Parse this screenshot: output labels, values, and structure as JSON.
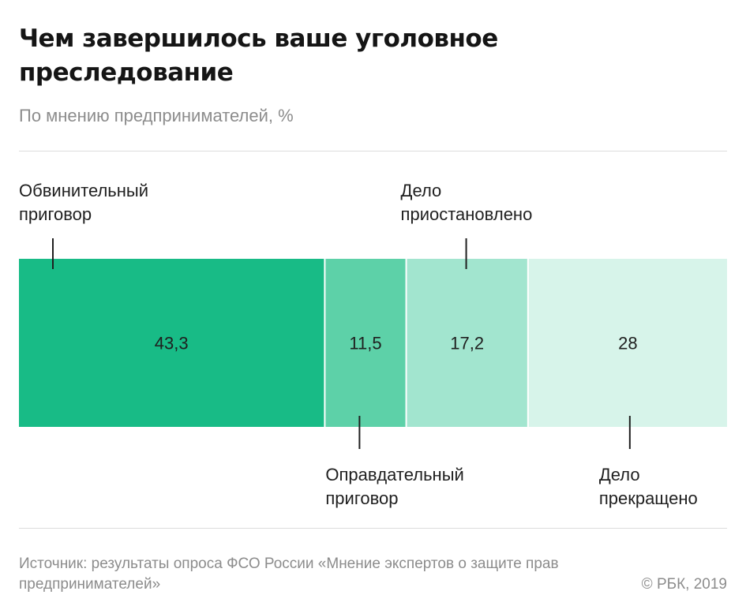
{
  "header": {
    "title": "Чем завершилось ваше уголовное преследование",
    "subtitle": "По мнению предпринимателей, %"
  },
  "chart_data": {
    "type": "bar",
    "stacked": true,
    "orientation": "horizontal",
    "title": "Чем завершилось ваше уголовное преследование",
    "subtitle": "По мнению предпринимателей, %",
    "segments": [
      {
        "label_lines": [
          "Обвинительный",
          "приговор"
        ],
        "value": 43.3,
        "display": "43,3",
        "color": "#18bb86",
        "label_position": "top"
      },
      {
        "label_lines": [
          "Оправдательный",
          "приговор"
        ],
        "value": 11.5,
        "display": "11,5",
        "color": "#5dd1a8",
        "label_position": "bottom"
      },
      {
        "label_lines": [
          "Дело",
          "приостановлено"
        ],
        "value": 17.2,
        "display": "17,2",
        "color": "#a2e5cf",
        "label_position": "top"
      },
      {
        "label_lines": [
          "Дело",
          "прекращено"
        ],
        "value": 28,
        "display": "28",
        "color": "#d7f4ea",
        "label_position": "bottom"
      }
    ]
  },
  "footer": {
    "source": "Источник: результаты опроса ФСО России «Мнение экспертов о защите прав предпринимателей»",
    "copyright": "© РБК, 2019"
  }
}
